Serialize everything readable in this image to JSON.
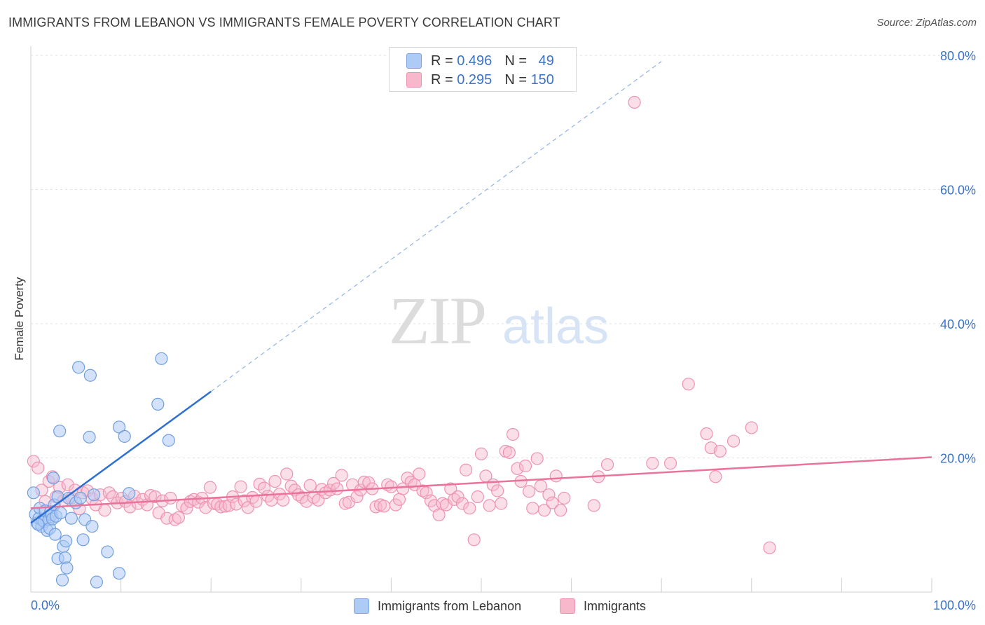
{
  "header": {
    "title": "IMMIGRANTS FROM LEBANON VS IMMIGRANTS FEMALE POVERTY CORRELATION CHART",
    "source": "Source: ZipAtlas.com"
  },
  "watermark": {
    "zip": "ZIP",
    "atlas": "atlas"
  },
  "legend_top": {
    "rows": [
      {
        "r_label": "R =",
        "r_value": "0.496",
        "n_label": "N =",
        "n_value": "49",
        "color": "#aecbf5"
      },
      {
        "r_label": "R =",
        "r_value": "0.295",
        "n_label": "N =",
        "n_value": "150",
        "color": "#f7b8cc"
      }
    ]
  },
  "legend_bottom": {
    "items": [
      {
        "label": "Immigrants from Lebanon",
        "color": "#aecbf5"
      },
      {
        "label": "Immigrants",
        "color": "#f7b8cc"
      }
    ]
  },
  "chart_data": {
    "type": "scatter",
    "title": "IMMIGRANTS FROM LEBANON VS IMMIGRANTS FEMALE POVERTY CORRELATION CHART",
    "xlabel": "",
    "ylabel": "Female Poverty",
    "xlim": [
      0,
      100
    ],
    "ylim": [
      0,
      80
    ],
    "x_tick_labels": [
      "0.0%",
      "100.0%"
    ],
    "y_ticks": [
      20,
      40,
      60,
      80
    ],
    "y_tick_labels": [
      "20.0%",
      "40.0%",
      "60.0%",
      "80.0%"
    ],
    "grid": "horizontal dashed",
    "legend_position": "top-center",
    "colors": {
      "lebanon": "#4a86d8",
      "lebanon_fill": "#aecbf5",
      "immigrants": "#e9739b",
      "immigrants_fill": "#f7b8cc",
      "axis_text": "#3b73c8"
    },
    "series": [
      {
        "name": "Immigrants from Lebanon",
        "R": 0.496,
        "N": 49,
        "trend": {
          "x": [
            0,
            20
          ],
          "y": [
            10.3,
            29.9
          ],
          "extended_to": [
            70,
            79.1
          ]
        },
        "points": [
          [
            0.3,
            14.8
          ],
          [
            0.5,
            11.6
          ],
          [
            0.7,
            10.3
          ],
          [
            0.9,
            11.0
          ],
          [
            1.0,
            12.5
          ],
          [
            1.2,
            9.8
          ],
          [
            1.3,
            10.7
          ],
          [
            1.5,
            10.5
          ],
          [
            1.6,
            12.1
          ],
          [
            1.8,
            9.2
          ],
          [
            2.0,
            10.8
          ],
          [
            2.1,
            9.5
          ],
          [
            2.2,
            12.0
          ],
          [
            2.3,
            11.5
          ],
          [
            2.4,
            10.9
          ],
          [
            2.5,
            17.0
          ],
          [
            2.6,
            13.0
          ],
          [
            2.8,
            11.3
          ],
          [
            3.0,
            5.0
          ],
          [
            3.0,
            14.2
          ],
          [
            3.2,
            24.0
          ],
          [
            3.3,
            11.8
          ],
          [
            3.5,
            1.8
          ],
          [
            3.6,
            6.8
          ],
          [
            3.8,
            5.1
          ],
          [
            3.9,
            7.6
          ],
          [
            4.0,
            3.6
          ],
          [
            4.2,
            14.0
          ],
          [
            4.5,
            11.0
          ],
          [
            5.0,
            13.3
          ],
          [
            5.3,
            33.5
          ],
          [
            5.5,
            14.0
          ],
          [
            5.8,
            7.8
          ],
          [
            6.0,
            10.8
          ],
          [
            6.5,
            23.1
          ],
          [
            6.6,
            32.3
          ],
          [
            6.8,
            9.8
          ],
          [
            7.0,
            14.5
          ],
          [
            7.3,
            1.5
          ],
          [
            8.5,
            6.0
          ],
          [
            9.8,
            2.8
          ],
          [
            9.8,
            24.6
          ],
          [
            10.4,
            23.2
          ],
          [
            10.9,
            14.7
          ],
          [
            14.1,
            28.0
          ],
          [
            14.5,
            34.8
          ],
          [
            15.3,
            22.6
          ],
          [
            0.8,
            10.1
          ],
          [
            2.7,
            8.6
          ]
        ]
      },
      {
        "name": "Immigrants",
        "R": 0.295,
        "N": 150,
        "trend": {
          "x": [
            0,
            100
          ],
          "y": [
            12.5,
            20.1
          ]
        },
        "points": [
          [
            0.3,
            19.5
          ],
          [
            0.8,
            18.5
          ],
          [
            1.2,
            15.2
          ],
          [
            1.6,
            13.5
          ],
          [
            2.0,
            16.5
          ],
          [
            2.4,
            17.2
          ],
          [
            2.8,
            14.2
          ],
          [
            3.2,
            15.6
          ],
          [
            3.6,
            13.6
          ],
          [
            4.1,
            16.0
          ],
          [
            4.5,
            14.0
          ],
          [
            4.9,
            15.2
          ],
          [
            5.4,
            12.4
          ],
          [
            5.8,
            14.8
          ],
          [
            6.3,
            15.1
          ],
          [
            6.8,
            13.9
          ],
          [
            7.2,
            13.0
          ],
          [
            7.7,
            14.5
          ],
          [
            8.2,
            12.2
          ],
          [
            8.7,
            14.8
          ],
          [
            9.1,
            14.2
          ],
          [
            9.6,
            13.3
          ],
          [
            10.1,
            14.0
          ],
          [
            10.5,
            13.5
          ],
          [
            11.0,
            12.7
          ],
          [
            11.5,
            14.3
          ],
          [
            11.9,
            13.2
          ],
          [
            12.4,
            13.8
          ],
          [
            12.9,
            13.0
          ],
          [
            13.3,
            14.4
          ],
          [
            13.8,
            14.2
          ],
          [
            14.2,
            11.8
          ],
          [
            14.6,
            13.6
          ],
          [
            15.1,
            11.0
          ],
          [
            15.5,
            14.0
          ],
          [
            16.0,
            10.8
          ],
          [
            16.4,
            11.1
          ],
          [
            16.8,
            12.9
          ],
          [
            17.3,
            12.5
          ],
          [
            17.7,
            13.5
          ],
          [
            18.1,
            13.8
          ],
          [
            18.6,
            13.4
          ],
          [
            19.0,
            14.0
          ],
          [
            19.4,
            12.6
          ],
          [
            19.9,
            15.6
          ],
          [
            20.3,
            13.2
          ],
          [
            20.7,
            13.1
          ],
          [
            21.1,
            12.7
          ],
          [
            21.6,
            12.8
          ],
          [
            22.0,
            12.9
          ],
          [
            22.4,
            14.2
          ],
          [
            22.8,
            13.1
          ],
          [
            23.3,
            15.7
          ],
          [
            23.7,
            13.6
          ],
          [
            24.1,
            12.6
          ],
          [
            24.6,
            14.1
          ],
          [
            25.0,
            13.5
          ],
          [
            25.4,
            16.1
          ],
          [
            25.9,
            15.5
          ],
          [
            26.3,
            14.3
          ],
          [
            26.7,
            13.7
          ],
          [
            27.1,
            16.5
          ],
          [
            27.6,
            14.6
          ],
          [
            28.0,
            13.7
          ],
          [
            28.4,
            17.6
          ],
          [
            28.9,
            15.8
          ],
          [
            29.3,
            15.2
          ],
          [
            29.7,
            14.5
          ],
          [
            30.1,
            14.1
          ],
          [
            30.6,
            13.5
          ],
          [
            31.0,
            15.9
          ],
          [
            31.4,
            14.1
          ],
          [
            31.9,
            13.7
          ],
          [
            32.3,
            15.3
          ],
          [
            32.7,
            14.8
          ],
          [
            33.2,
            15.2
          ],
          [
            33.6,
            16.2
          ],
          [
            34.0,
            15.4
          ],
          [
            34.5,
            17.4
          ],
          [
            34.9,
            13.2
          ],
          [
            35.3,
            13.4
          ],
          [
            35.7,
            16.0
          ],
          [
            36.2,
            14.2
          ],
          [
            36.6,
            15.2
          ],
          [
            37.0,
            16.4
          ],
          [
            37.5,
            16.3
          ],
          [
            37.9,
            15.4
          ],
          [
            38.3,
            12.7
          ],
          [
            38.8,
            13.0
          ],
          [
            39.2,
            12.8
          ],
          [
            39.6,
            16.0
          ],
          [
            40.0,
            15.7
          ],
          [
            40.5,
            13.0
          ],
          [
            40.9,
            13.8
          ],
          [
            41.3,
            15.4
          ],
          [
            41.8,
            17.0
          ],
          [
            42.2,
            16.4
          ],
          [
            42.6,
            16.0
          ],
          [
            43.1,
            17.6
          ],
          [
            43.5,
            15.1
          ],
          [
            43.9,
            14.8
          ],
          [
            44.4,
            13.6
          ],
          [
            44.8,
            12.9
          ],
          [
            45.3,
            11.5
          ],
          [
            45.7,
            13.2
          ],
          [
            46.1,
            13.0
          ],
          [
            46.6,
            15.4
          ],
          [
            47.0,
            13.8
          ],
          [
            47.4,
            14.2
          ],
          [
            47.9,
            13.2
          ],
          [
            48.3,
            18.2
          ],
          [
            48.7,
            12.5
          ],
          [
            49.2,
            7.8
          ],
          [
            49.6,
            14.2
          ],
          [
            50.0,
            20.6
          ],
          [
            50.5,
            17.3
          ],
          [
            50.9,
            12.9
          ],
          [
            51.3,
            16.0
          ],
          [
            51.8,
            15.1
          ],
          [
            52.2,
            13.2
          ],
          [
            52.7,
            21.0
          ],
          [
            53.1,
            20.8
          ],
          [
            53.5,
            23.5
          ],
          [
            54.0,
            18.4
          ],
          [
            54.4,
            16.5
          ],
          [
            54.9,
            18.8
          ],
          [
            55.3,
            15.0
          ],
          [
            55.7,
            12.5
          ],
          [
            56.2,
            19.9
          ],
          [
            56.6,
            15.8
          ],
          [
            57.0,
            12.2
          ],
          [
            57.5,
            14.5
          ],
          [
            57.9,
            13.3
          ],
          [
            58.3,
            17.3
          ],
          [
            58.8,
            12.2
          ],
          [
            59.2,
            14.0
          ],
          [
            62.5,
            12.9
          ],
          [
            63.0,
            17.2
          ],
          [
            64.0,
            19.0
          ],
          [
            69.0,
            19.2
          ],
          [
            71.0,
            19.2
          ],
          [
            73.0,
            31.0
          ],
          [
            75.0,
            23.6
          ],
          [
            75.5,
            21.5
          ],
          [
            76.0,
            17.2
          ],
          [
            76.5,
            21.0
          ],
          [
            78.0,
            22.5
          ],
          [
            80.0,
            24.5
          ],
          [
            82.0,
            6.6
          ],
          [
            67.0,
            73.0
          ]
        ]
      }
    ]
  }
}
